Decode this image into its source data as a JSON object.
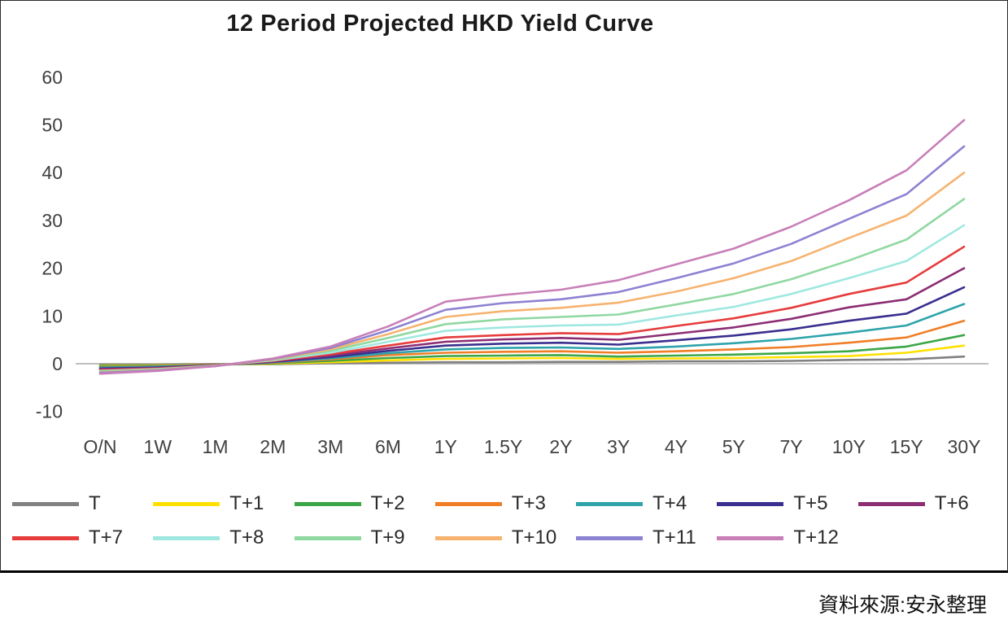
{
  "page": {
    "source_note": "資料來源:安永整理"
  },
  "chart_data": {
    "type": "line",
    "title": "12 Period Projected HKD Yield Curve",
    "xlabel": "",
    "ylabel": "",
    "ylim": [
      -10,
      60
    ],
    "yticks": [
      60,
      50,
      40,
      30,
      20,
      10,
      0,
      -10
    ],
    "grid": false,
    "legend_position": "bottom",
    "axis_color": "#bfbfbf",
    "categories": [
      "O/N",
      "1W",
      "1M",
      "2M",
      "3M",
      "6M",
      "1Y",
      "1.5Y",
      "2Y",
      "3Y",
      "4Y",
      "5Y",
      "7Y",
      "10Y",
      "15Y",
      "30Y"
    ],
    "series": [
      {
        "name": "T",
        "color": "#808080",
        "values": [
          -0.2,
          -0.2,
          -0.1,
          -0.1,
          0.1,
          0.2,
          0.3,
          0.3,
          0.4,
          0.4,
          0.5,
          0.5,
          0.6,
          0.8,
          0.9,
          1.5
        ]
      },
      {
        "name": "T+1",
        "color": "#ffe000",
        "values": [
          -0.4,
          -0.3,
          -0.2,
          0.0,
          0.3,
          0.7,
          1.0,
          1.1,
          1.2,
          1.0,
          1.1,
          1.2,
          1.4,
          1.6,
          2.3,
          3.8
        ]
      },
      {
        "name": "T+2",
        "color": "#3ba648",
        "values": [
          -0.5,
          -0.4,
          -0.2,
          0.1,
          0.6,
          1.2,
          1.6,
          1.7,
          1.8,
          1.5,
          1.7,
          1.9,
          2.2,
          2.6,
          3.6,
          6.0
        ]
      },
      {
        "name": "T+3",
        "color": "#f07e26",
        "values": [
          -0.7,
          -0.5,
          -0.2,
          0.2,
          0.9,
          1.8,
          2.3,
          2.5,
          2.6,
          2.3,
          2.6,
          3.0,
          3.5,
          4.4,
          5.5,
          9.0
        ]
      },
      {
        "name": "T+4",
        "color": "#2ea3ab",
        "values": [
          -0.8,
          -0.6,
          -0.3,
          0.3,
          1.1,
          2.2,
          3.0,
          3.3,
          3.4,
          3.1,
          3.6,
          4.3,
          5.2,
          6.5,
          8.0,
          12.5
        ]
      },
      {
        "name": "T+5",
        "color": "#3a2f8f",
        "values": [
          -1.0,
          -0.8,
          -0.3,
          0.4,
          1.4,
          2.7,
          3.8,
          4.2,
          4.4,
          4.0,
          4.9,
          5.9,
          7.2,
          9.0,
          10.5,
          16.0
        ]
      },
      {
        "name": "T+6",
        "color": "#8c2e74",
        "values": [
          -1.2,
          -0.9,
          -0.3,
          0.5,
          1.7,
          3.2,
          4.6,
          5.1,
          5.4,
          5.0,
          6.3,
          7.6,
          9.4,
          11.8,
          13.5,
          20.0
        ]
      },
      {
        "name": "T+7",
        "color": "#e63c3c",
        "values": [
          -1.3,
          -1.0,
          -0.4,
          0.6,
          2.0,
          3.8,
          5.5,
          6.0,
          6.4,
          6.2,
          7.9,
          9.5,
          11.7,
          14.6,
          17.0,
          24.5
        ]
      },
      {
        "name": "T+8",
        "color": "#9fe8e0",
        "values": [
          -1.5,
          -1.1,
          -0.4,
          0.7,
          2.3,
          4.6,
          6.9,
          7.6,
          8.0,
          8.2,
          10.1,
          11.9,
          14.6,
          17.9,
          21.5,
          29.0
        ]
      },
      {
        "name": "T+9",
        "color": "#90d8a2",
        "values": [
          -1.6,
          -1.2,
          -0.4,
          0.8,
          2.7,
          5.4,
          8.3,
          9.3,
          9.8,
          10.3,
          12.4,
          14.6,
          17.7,
          21.6,
          26.0,
          34.5
        ]
      },
      {
        "name": "T+10",
        "color": "#f6b36f",
        "values": [
          -1.8,
          -1.3,
          -0.5,
          0.9,
          3.0,
          6.2,
          9.8,
          11.0,
          11.7,
          12.8,
          15.1,
          17.9,
          21.5,
          26.3,
          31.0,
          40.0
        ]
      },
      {
        "name": "T+11",
        "color": "#8d82d2",
        "values": [
          -1.9,
          -1.4,
          -0.5,
          1.0,
          3.3,
          7.0,
          11.3,
          12.7,
          13.5,
          15.0,
          17.9,
          21.0,
          25.1,
          30.3,
          35.5,
          45.5
        ]
      },
      {
        "name": "T+12",
        "color": "#c87fb8",
        "values": [
          -2.1,
          -1.5,
          -0.5,
          1.1,
          3.6,
          7.8,
          13.0,
          14.4,
          15.5,
          17.5,
          20.8,
          24.1,
          28.7,
          34.2,
          40.5,
          51.0
        ]
      }
    ]
  }
}
